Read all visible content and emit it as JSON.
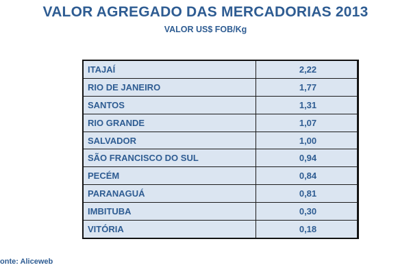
{
  "title": "VALOR AGREGADO DAS MERCADORIAS 2013",
  "subtitle": "VALOR US$ FOB/Kg",
  "source": "onte: Aliceweb",
  "colors": {
    "text": "#2e5c92",
    "cell_fill": "#dbe5f1",
    "border": "#1a1a1a"
  },
  "chart_data": {
    "type": "table",
    "title": "VALOR AGREGADO DAS MERCADORIAS 2013",
    "subtitle": "VALOR US$ FOB/Kg",
    "rows": [
      {
        "port": "ITAJAÍ",
        "value": "2,22"
      },
      {
        "port": "RIO DE JANEIRO",
        "value": "1,77"
      },
      {
        "port": "SANTOS",
        "value": "1,31"
      },
      {
        "port": "RIO GRANDE",
        "value": "1,07"
      },
      {
        "port": "SALVADOR",
        "value": "1,00"
      },
      {
        "port": "SÃO FRANCISCO DO SUL",
        "value": "0,94"
      },
      {
        "port": "PECÉM",
        "value": "0,84"
      },
      {
        "port": "PARANAGUÁ",
        "value": "0,81"
      },
      {
        "port": "IMBITUBA",
        "value": "0,30"
      },
      {
        "port": "VITÓRIA",
        "value": "0,18"
      }
    ]
  }
}
